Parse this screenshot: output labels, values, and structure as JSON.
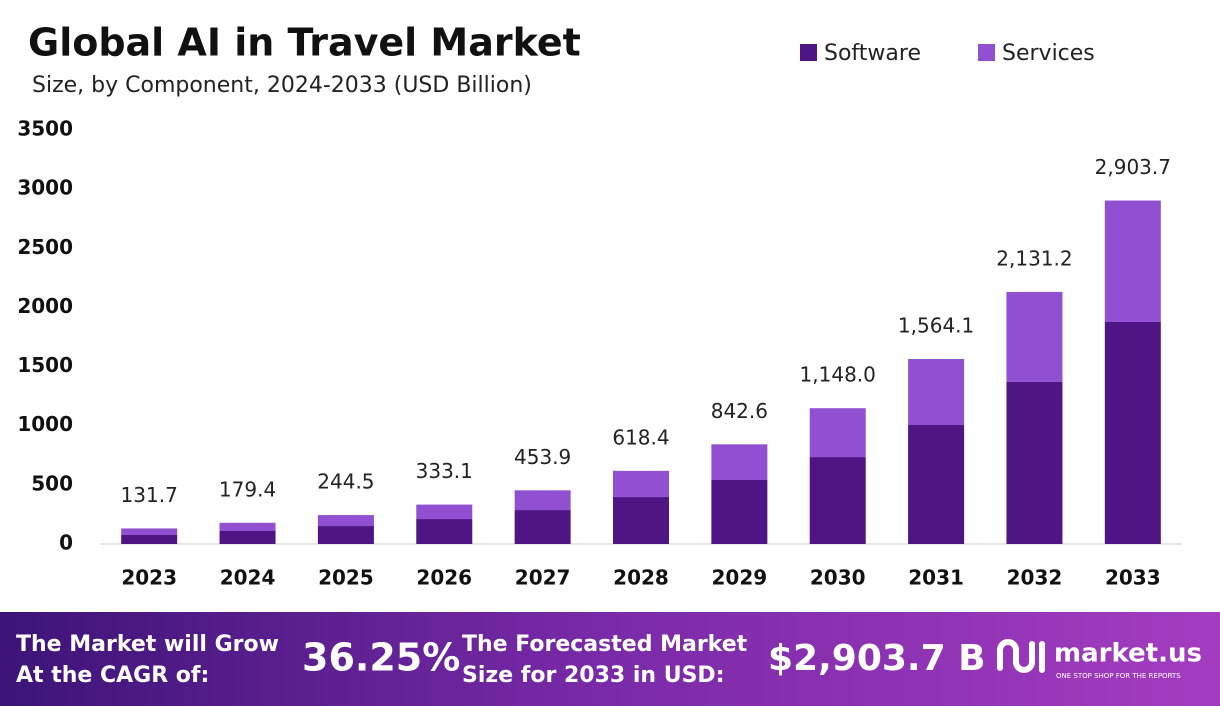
{
  "chart_data": {
    "type": "stacked-bar",
    "title": "Global AI in Travel Market",
    "subtitle": "Size, by Component, 2024-2033 (USD Billion)",
    "categories": [
      "2023",
      "2024",
      "2025",
      "2026",
      "2027",
      "2028",
      "2029",
      "2030",
      "2031",
      "2032",
      "2033"
    ],
    "series": [
      {
        "name": "Software",
        "color": "#4f1585",
        "values": [
          76,
          110,
          152,
          211,
          287,
          397,
          541,
          735,
          1006,
          1370,
          1877
        ]
      },
      {
        "name": "Services",
        "color": "#9150d2",
        "values": [
          55.7,
          69.4,
          92.5,
          122.1,
          166.9,
          221.4,
          301.6,
          413,
          558.1,
          761.2,
          1026.7
        ]
      }
    ],
    "totals": [
      131.7,
      179.4,
      244.5,
      333.1,
      453.9,
      618.4,
      842.6,
      1148.0,
      1564.1,
      2131.2,
      2903.7
    ],
    "total_labels": [
      "131.7",
      "179.4",
      "244.5",
      "333.1",
      "453.9",
      "618.4",
      "842.6",
      "1,148.0",
      "1,564.1",
      "2,131.2",
      "2,903.7"
    ],
    "ylim": [
      0,
      3500
    ],
    "yticks": [
      0,
      500,
      1000,
      1500,
      2000,
      2500,
      3000,
      3500
    ],
    "grid": false,
    "legend": "top-right"
  },
  "footer": {
    "cagr_text": [
      "The Market will Grow",
      "At the CAGR of:"
    ],
    "cagr": "36.25%",
    "forecast_text": [
      "The Forecasted Market",
      "Size for 2033 in USD:"
    ],
    "forecast": "$2,903.7 B",
    "brand": "market.us",
    "tagline": "ONE STOP SHOP FOR THE REPORTS"
  }
}
